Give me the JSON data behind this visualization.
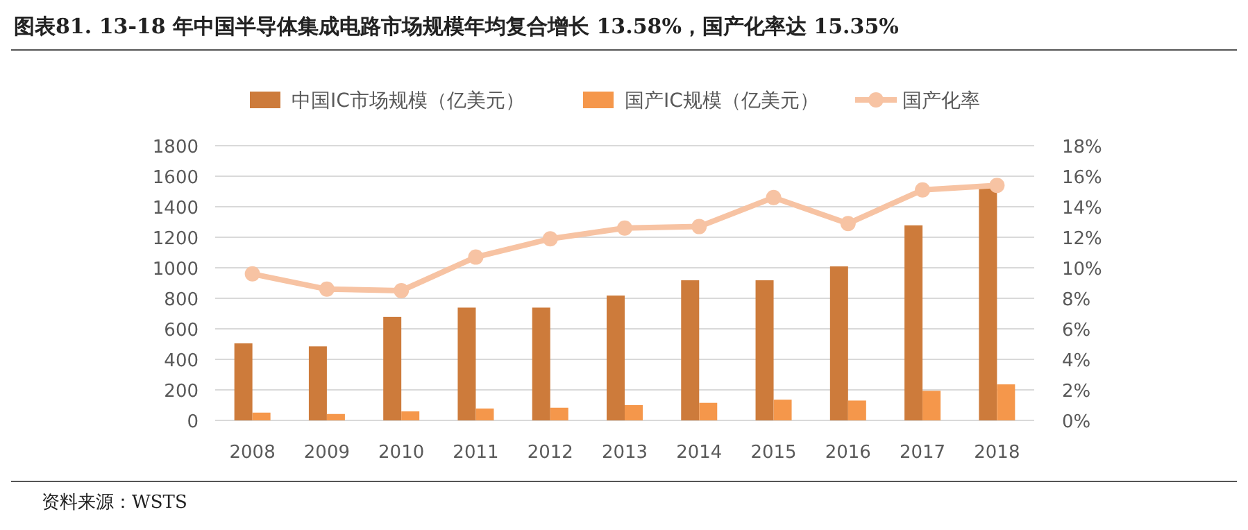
{
  "chart_data": {
    "type": "bar",
    "title": "图表81.  13-18 年中国半导体集成电路市场规模年均复合增长 13.58%，国产化率达 15.35%",
    "categories": [
      "2008",
      "2009",
      "2010",
      "2011",
      "2012",
      "2013",
      "2014",
      "2015",
      "2016",
      "2017",
      "2018"
    ],
    "series": [
      {
        "name": "中国IC市场规模（亿美元）",
        "color": "#cd7b3b",
        "values": [
          505,
          485,
          678,
          739,
          739,
          818,
          918,
          918,
          1009,
          1278,
          1524
        ]
      },
      {
        "name": "国产IC规模（亿美元）",
        "color": "#f5974b",
        "values": [
          51,
          42,
          59,
          78,
          83,
          100,
          115,
          136,
          130,
          194,
          236
        ]
      },
      {
        "name": "国产化率",
        "type": "line",
        "axis": "y2",
        "color": "#f7c3a3",
        "marker": "circle",
        "values": [
          9.6,
          8.6,
          8.5,
          10.7,
          11.9,
          12.6,
          12.7,
          14.6,
          12.9,
          15.1,
          15.4
        ]
      }
    ],
    "ylim": [
      0,
      1800
    ],
    "yticks": [
      0,
      200,
      400,
      600,
      800,
      1000,
      1200,
      1400,
      1600,
      1800
    ],
    "y2lim": [
      0,
      18
    ],
    "y2ticks": [
      {
        "value": 0,
        "label": "0%"
      },
      {
        "value": 2,
        "label": "2%"
      },
      {
        "value": 4,
        "label": "4%"
      },
      {
        "value": 6,
        "label": "6%"
      },
      {
        "value": 8,
        "label": "8%"
      },
      {
        "value": 10,
        "label": "10%"
      },
      {
        "value": 12,
        "label": "12%"
      },
      {
        "value": 14,
        "label": "14%"
      },
      {
        "value": 16,
        "label": "16%"
      },
      {
        "value": 18,
        "label": "18%"
      }
    ],
    "grid": "y",
    "legend": "top",
    "annotations": [
      "资料来源：WSTS"
    ]
  }
}
